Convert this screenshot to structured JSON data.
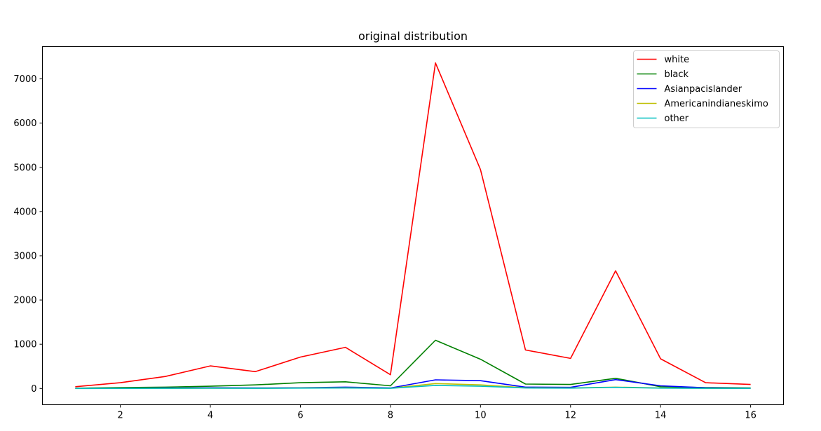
{
  "chart_data": {
    "type": "line",
    "title": "original distribution",
    "xlabel": "",
    "ylabel": "",
    "x": [
      1,
      2,
      3,
      4,
      5,
      6,
      7,
      8,
      9,
      10,
      11,
      12,
      13,
      14,
      15,
      16
    ],
    "xlim": [
      0.27,
      16.73
    ],
    "ylim": [
      -368,
      7730
    ],
    "xticks": [
      2,
      4,
      6,
      8,
      10,
      12,
      14,
      16
    ],
    "yticks": [
      0,
      1000,
      2000,
      3000,
      4000,
      5000,
      6000,
      7000
    ],
    "grid": false,
    "legend_position": "top-right",
    "series": [
      {
        "name": "white",
        "color": "#ff0000",
        "values": [
          40,
          130,
          270,
          510,
          380,
          710,
          930,
          310,
          7360,
          4950,
          870,
          680,
          2660,
          670,
          130,
          90
        ]
      },
      {
        "name": "black",
        "color": "#008000",
        "values": [
          5,
          20,
          30,
          50,
          80,
          130,
          150,
          60,
          1090,
          660,
          100,
          90,
          230,
          40,
          20,
          10
        ]
      },
      {
        "name": "Asianpacislander",
        "color": "#0000ff",
        "values": [
          2,
          5,
          10,
          15,
          10,
          15,
          30,
          10,
          195,
          175,
          30,
          25,
          200,
          60,
          15,
          5
        ]
      },
      {
        "name": "Americanindianeskimo",
        "color": "#bfbf00",
        "values": [
          1,
          3,
          5,
          8,
          5,
          10,
          15,
          5,
          110,
          80,
          15,
          10,
          30,
          10,
          5,
          2
        ]
      },
      {
        "name": "other",
        "color": "#00bfbf",
        "values": [
          0,
          2,
          3,
          5,
          3,
          8,
          10,
          3,
          70,
          50,
          10,
          8,
          25,
          8,
          3,
          1
        ]
      }
    ]
  }
}
